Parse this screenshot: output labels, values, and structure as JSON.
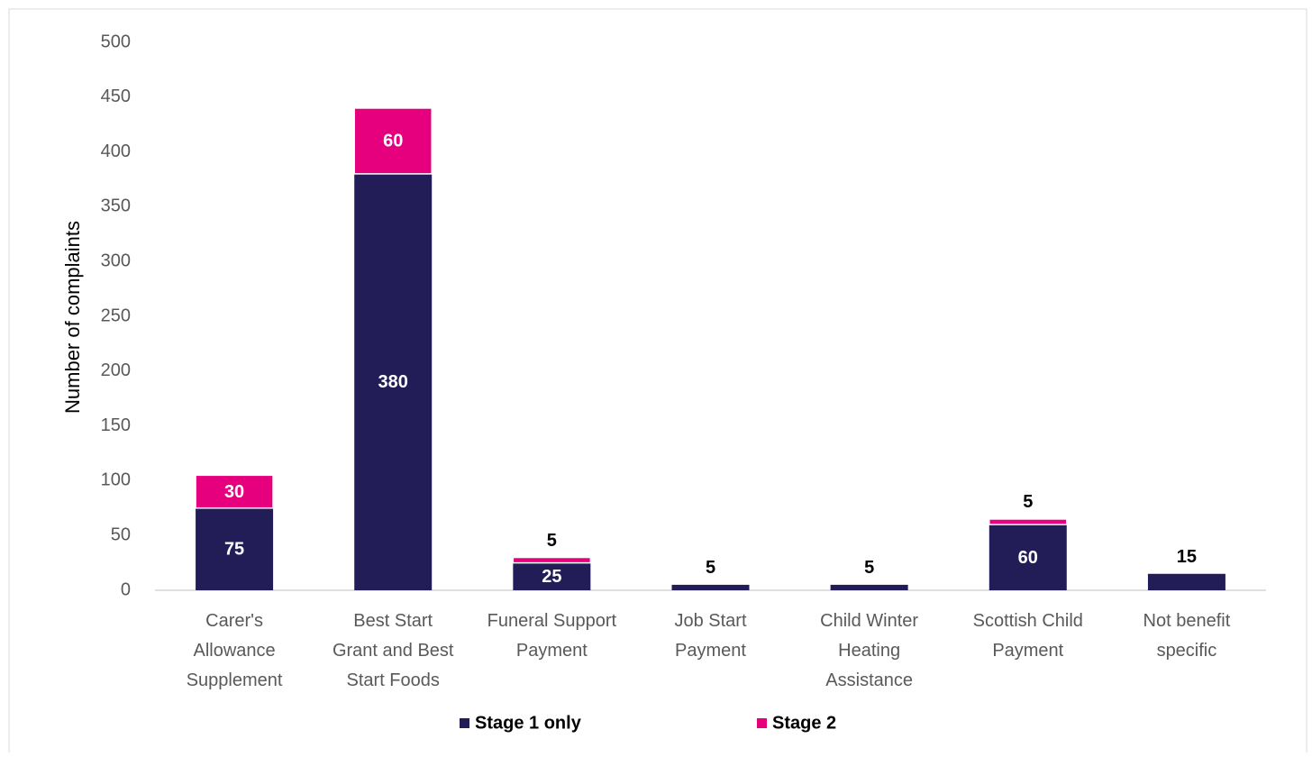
{
  "chart_data": {
    "type": "bar",
    "stacked": true,
    "y_label": "Number of complaints",
    "categories": [
      "Carer's Allowance Supplement",
      "Best Start Grant and Best Start Foods",
      "Funeral Support Payment",
      "Job Start Payment",
      "Child Winter Heating Assistance",
      "Scottish Child Payment",
      "Not benefit specific"
    ],
    "series": [
      {
        "name": "Stage 1 only",
        "color": "#221c57",
        "values": [
          75,
          380,
          25,
          5,
          5,
          60,
          15
        ]
      },
      {
        "name": "Stage 2",
        "color": "#e6007e",
        "values": [
          30,
          60,
          5,
          null,
          null,
          5,
          null
        ]
      }
    ],
    "ylim": [
      0,
      500
    ],
    "yticks": [
      0,
      50,
      100,
      150,
      200,
      250,
      300,
      350,
      400,
      450,
      500
    ],
    "grid": false,
    "legend": "bottom"
  }
}
